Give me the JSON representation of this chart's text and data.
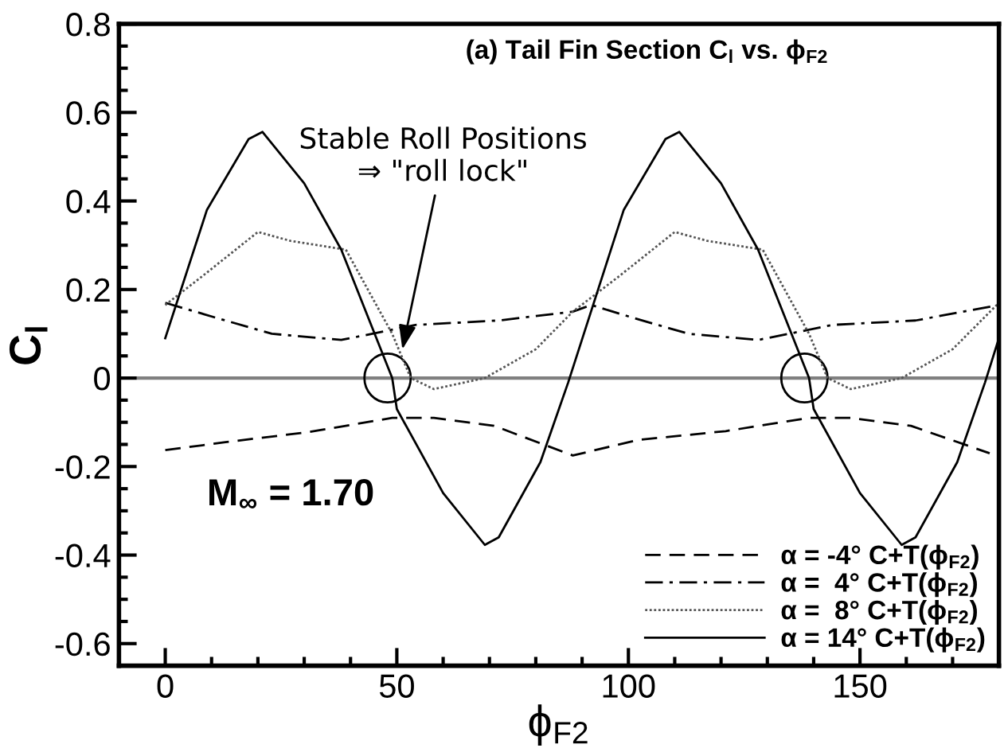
{
  "chart_data": {
    "type": "line",
    "title": "(a) Tail Fin Section C$_{l}$ vs. ϕ$_{F2}$",
    "xlabel": "ϕ$_{F2}$",
    "ylabel": "C$_{l}$",
    "xlim": [
      -10,
      180
    ],
    "ylim": [
      -0.65,
      0.8
    ],
    "xticks": [
      0,
      50,
      100,
      150
    ],
    "yticks": [
      -0.6,
      -0.4,
      -0.2,
      0,
      0.2,
      0.4,
      0.6,
      0.8
    ],
    "grid": false,
    "legend": "bottom right",
    "marker": "none",
    "ref_lines": [
      {
        "axis": "y",
        "value": 0,
        "color": "#808080"
      }
    ],
    "annotations": [
      {
        "text": "Stable Roll Positions\n⇒ \"roll lock\"",
        "x": 51,
        "y": 0.055
      },
      "M$_{∞}$ = 1.70"
    ],
    "series": [
      {
        "name": "α = -4° C+T(ϕ$_{F2}$)",
        "color": "#000000",
        "line_style": "dashed",
        "x": [
          0,
          13,
          31,
          49,
          58,
          71,
          88,
          102,
          121,
          139,
          148,
          161,
          178
        ],
        "values": [
          -0.163,
          -0.145,
          -0.122,
          -0.09,
          -0.09,
          -0.108,
          -0.175,
          -0.14,
          -0.12,
          -0.09,
          -0.09,
          -0.108,
          -0.17
        ]
      },
      {
        "name": "α =  4° C+T(ϕ$_{F2}$)",
        "color": "#000000",
        "line_style": "dashdot",
        "x": [
          0,
          11,
          23,
          38,
          48,
          54,
          72,
          88,
          92,
          101,
          113,
          128,
          138,
          144,
          162,
          180
        ],
        "values": [
          0.17,
          0.136,
          0.1,
          0.086,
          0.107,
          0.12,
          0.13,
          0.15,
          0.165,
          0.136,
          0.1,
          0.086,
          0.107,
          0.12,
          0.13,
          0.165
        ]
      },
      {
        "name": "α =  8° C+T(ϕ$_{F2}$)",
        "color": "#555555",
        "line_style": "dotted",
        "x": [
          0,
          8,
          20,
          27,
          39,
          49,
          53,
          58,
          69,
          80,
          88,
          98,
          110,
          117,
          129,
          139,
          143,
          148,
          159,
          170,
          180
        ],
        "values": [
          0.165,
          0.23,
          0.33,
          0.31,
          0.29,
          0.1,
          0.0,
          -0.025,
          0.0,
          0.065,
          0.15,
          0.23,
          0.33,
          0.31,
          0.29,
          0.1,
          0.0,
          -0.025,
          0.0,
          0.065,
          0.17
        ]
      },
      {
        "name": "α = 14° C+T(ϕ$_{F2}$)",
        "color": "#000000",
        "line_style": "solid",
        "x": [
          0,
          9,
          18,
          21,
          30,
          38,
          49,
          50,
          60,
          69,
          72,
          81,
          87,
          99,
          108,
          111,
          120,
          128,
          139,
          140,
          150,
          159,
          162,
          171,
          177,
          180
        ],
        "values": [
          0.09,
          0.38,
          0.54,
          0.556,
          0.44,
          0.29,
          0.0,
          -0.07,
          -0.26,
          -0.377,
          -0.36,
          -0.19,
          -0.01,
          0.38,
          0.54,
          0.556,
          0.44,
          0.29,
          0.0,
          -0.07,
          -0.26,
          -0.377,
          -0.36,
          -0.19,
          -0.01,
          0.09
        ]
      }
    ]
  }
}
